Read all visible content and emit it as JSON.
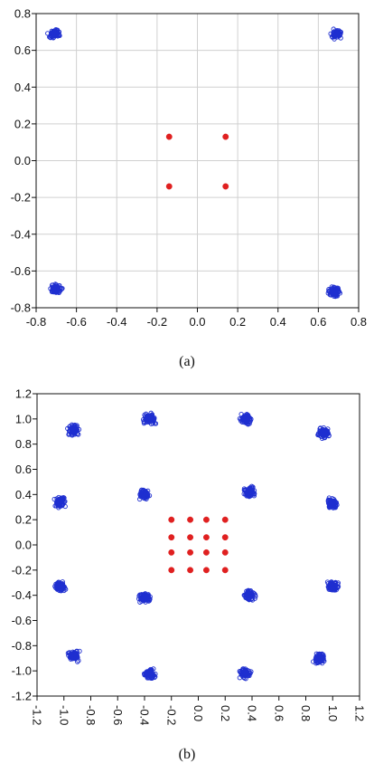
{
  "chart_data": [
    {
      "type": "scatter",
      "caption": "(a)",
      "xlim": [
        -0.8,
        0.8
      ],
      "ylim": [
        -0.8,
        0.8
      ],
      "xticks": [
        "-0.8",
        "-0.6",
        "-0.4",
        "-0.2",
        "0.0",
        "0.2",
        "0.4",
        "0.6",
        "0.8"
      ],
      "yticks": [
        "0.8",
        "0.6",
        "0.4",
        "0.2",
        "0.0",
        "-0.2",
        "-0.4",
        "-0.6",
        "-0.8"
      ],
      "x_tick_values": [
        -0.8,
        -0.6,
        -0.4,
        -0.2,
        0.0,
        0.2,
        0.4,
        0.6,
        0.8
      ],
      "y_tick_values": [
        0.8,
        0.6,
        0.4,
        0.2,
        0.0,
        -0.2,
        -0.4,
        -0.6,
        -0.8
      ],
      "grid": true,
      "colors": {
        "received": "#1f2fd0",
        "reference": "#e02020"
      },
      "series": [
        {
          "marker": "open-circle",
          "clusters": [
            {
              "cx": -0.71,
              "cy": 0.69
            },
            {
              "cx": 0.69,
              "cy": 0.69
            },
            {
              "cx": -0.7,
              "cy": -0.7
            },
            {
              "cx": 0.68,
              "cy": -0.71
            }
          ]
        },
        {
          "marker": "filled-circle",
          "points": [
            {
              "x": -0.14,
              "y": 0.13
            },
            {
              "x": 0.14,
              "y": 0.13
            },
            {
              "x": -0.14,
              "y": -0.14
            },
            {
              "x": 0.14,
              "y": -0.14
            }
          ]
        }
      ]
    },
    {
      "type": "scatter",
      "caption": "(b)",
      "xlim": [
        -1.2,
        1.2
      ],
      "ylim": [
        -1.2,
        1.2
      ],
      "xticks": [
        "-1.2",
        "-1.0",
        "-0.8",
        "-0.6",
        "-0.4",
        "-0.2",
        "0.0",
        "0.2",
        "0.4",
        "0.6",
        "0.8",
        "1.0",
        "1.2"
      ],
      "yticks": [
        "1.2",
        "1.0",
        "0.8",
        "0.6",
        "0.4",
        "0.2",
        "0.0",
        "-0.2",
        "-0.4",
        "-0.6",
        "-0.8",
        "-1.0",
        "-1.2"
      ],
      "x_tick_values": [
        -1.2,
        -1.0,
        -0.8,
        -0.6,
        -0.4,
        -0.2,
        0.0,
        0.2,
        0.4,
        0.6,
        0.8,
        1.0,
        1.2
      ],
      "y_tick_values": [
        1.2,
        1.0,
        0.8,
        0.6,
        0.4,
        0.2,
        0.0,
        -0.2,
        -0.4,
        -0.6,
        -0.8,
        -1.0,
        -1.2
      ],
      "x_tick_rotation": 90,
      "grid": false,
      "colors": {
        "received": "#1f2fd0",
        "reference": "#e02020"
      },
      "series": [
        {
          "marker": "open-circle",
          "clusters": [
            {
              "cx": -0.93,
              "cy": 0.91
            },
            {
              "cx": -0.36,
              "cy": 1.0
            },
            {
              "cx": 0.35,
              "cy": 1.0
            },
            {
              "cx": 0.93,
              "cy": 0.89
            },
            {
              "cx": -1.03,
              "cy": 0.34
            },
            {
              "cx": -0.4,
              "cy": 0.4
            },
            {
              "cx": 0.38,
              "cy": 0.42
            },
            {
              "cx": 1.0,
              "cy": 0.33
            },
            {
              "cx": -1.03,
              "cy": -0.33
            },
            {
              "cx": -0.4,
              "cy": -0.42
            },
            {
              "cx": 0.38,
              "cy": -0.4
            },
            {
              "cx": 1.0,
              "cy": -0.33
            },
            {
              "cx": -0.93,
              "cy": -0.88
            },
            {
              "cx": -0.36,
              "cy": -1.02
            },
            {
              "cx": 0.35,
              "cy": -1.02
            },
            {
              "cx": 0.9,
              "cy": -0.9
            }
          ]
        },
        {
          "marker": "filled-circle",
          "points": [
            {
              "x": -0.2,
              "y": 0.2
            },
            {
              "x": -0.06,
              "y": 0.2
            },
            {
              "x": 0.06,
              "y": 0.2
            },
            {
              "x": 0.2,
              "y": 0.2
            },
            {
              "x": -0.2,
              "y": 0.06
            },
            {
              "x": -0.06,
              "y": 0.06
            },
            {
              "x": 0.06,
              "y": 0.06
            },
            {
              "x": 0.2,
              "y": 0.06
            },
            {
              "x": -0.2,
              "y": -0.06
            },
            {
              "x": -0.06,
              "y": -0.06
            },
            {
              "x": 0.06,
              "y": -0.06
            },
            {
              "x": 0.2,
              "y": -0.06
            },
            {
              "x": -0.2,
              "y": -0.2
            },
            {
              "x": -0.06,
              "y": -0.2
            },
            {
              "x": 0.06,
              "y": -0.2
            },
            {
              "x": 0.2,
              "y": -0.2
            }
          ]
        }
      ]
    }
  ]
}
